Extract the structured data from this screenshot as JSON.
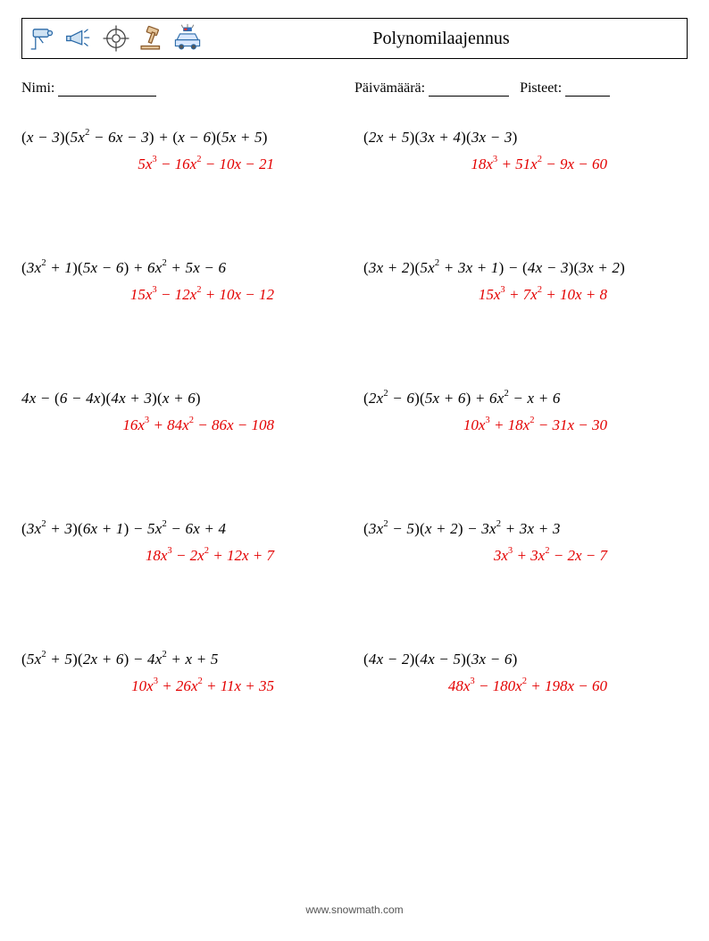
{
  "title": "Polynomilaajennus",
  "labels": {
    "name": "Nimi:",
    "date": "Päivämäärä:",
    "score": "Pisteet:"
  },
  "blank_widths": {
    "name": 110,
    "date": 90,
    "score": 50
  },
  "answer_color": "#e30000",
  "problems": [
    {
      "left": {
        "expr": "(<i>x</i> − 3)(5<i>x</i><sup>2</sup> − 6<i>x</i> − 3) + (<i>x</i> − 6)(5<i>x</i> + 5)",
        "ans": "5<i>x</i><sup>3</sup> − 16<i>x</i><sup>2</sup> − 10<i>x</i> − 21"
      },
      "right": {
        "expr": "(2<i>x</i> + 5)(3<i>x</i> + 4)(3<i>x</i> − 3)",
        "ans": "18<i>x</i><sup>3</sup> + 51<i>x</i><sup>2</sup> − 9<i>x</i> − 60"
      }
    },
    {
      "left": {
        "expr": "(3<i>x</i><sup>2</sup> + 1)(5<i>x</i> − 6) + 6<i>x</i><sup>2</sup> + 5<i>x</i> − 6",
        "ans": "15<i>x</i><sup>3</sup> − 12<i>x</i><sup>2</sup> + 10<i>x</i> − 12"
      },
      "right": {
        "expr": "(3<i>x</i> + 2)(5<i>x</i><sup>2</sup> + 3<i>x</i> + 1) − (4<i>x</i> − 3)(3<i>x</i> + 2)",
        "ans": "15<i>x</i><sup>3</sup> + 7<i>x</i><sup>2</sup> + 10<i>x</i> + 8"
      }
    },
    {
      "left": {
        "expr": "4<i>x</i> − (6 − 4<i>x</i>)(4<i>x</i> + 3)(<i>x</i> + 6)",
        "ans": "16<i>x</i><sup>3</sup> + 84<i>x</i><sup>2</sup> − 86<i>x</i> − 108"
      },
      "right": {
        "expr": "(2<i>x</i><sup>2</sup> − 6)(5<i>x</i> + 6) + 6<i>x</i><sup>2</sup> − <i>x</i> + 6",
        "ans": "10<i>x</i><sup>3</sup> + 18<i>x</i><sup>2</sup> − 31<i>x</i> − 30"
      }
    },
    {
      "left": {
        "expr": "(3<i>x</i><sup>2</sup> + 3)(6<i>x</i> + 1) − 5<i>x</i><sup>2</sup> − 6<i>x</i> + 4",
        "ans": "18<i>x</i><sup>3</sup> − 2<i>x</i><sup>2</sup> + 12<i>x</i> + 7"
      },
      "right": {
        "expr": "(3<i>x</i><sup>2</sup> − 5)(<i>x</i> + 2) − 3<i>x</i><sup>2</sup> + 3<i>x</i> + 3",
        "ans": "3<i>x</i><sup>3</sup> + 3<i>x</i><sup>2</sup> − 2<i>x</i> − 7"
      }
    },
    {
      "left": {
        "expr": "(5<i>x</i><sup>2</sup> + 5)(2<i>x</i> + 6) − 4<i>x</i><sup>2</sup> + <i>x</i> + 5",
        "ans": "10<i>x</i><sup>3</sup> + 26<i>x</i><sup>2</sup> + 11<i>x</i> + 35"
      },
      "right": {
        "expr": "(4<i>x</i> − 2)(4<i>x</i> − 5)(3<i>x</i> − 6)",
        "ans": "48<i>x</i><sup>3</sup> − 180<i>x</i><sup>2</sup> + 198<i>x</i> − 60"
      }
    }
  ],
  "footer": "www.snowmath.com",
  "icons": {
    "camera": {
      "stroke": "#2b6aa8",
      "fill": "#cfe2f3"
    },
    "megaphone": {
      "stroke": "#2b6aa8",
      "fill": "#cfe2f3"
    },
    "crosshair": {
      "stroke": "#444",
      "fill": "none"
    },
    "gavel": {
      "stroke": "#8a5a2b",
      "fill": "#e6c79c"
    },
    "police": {
      "body": "#d9e8ff",
      "stroke": "#2b6aa8",
      "red": "#e33",
      "blue": "#36c"
    }
  }
}
